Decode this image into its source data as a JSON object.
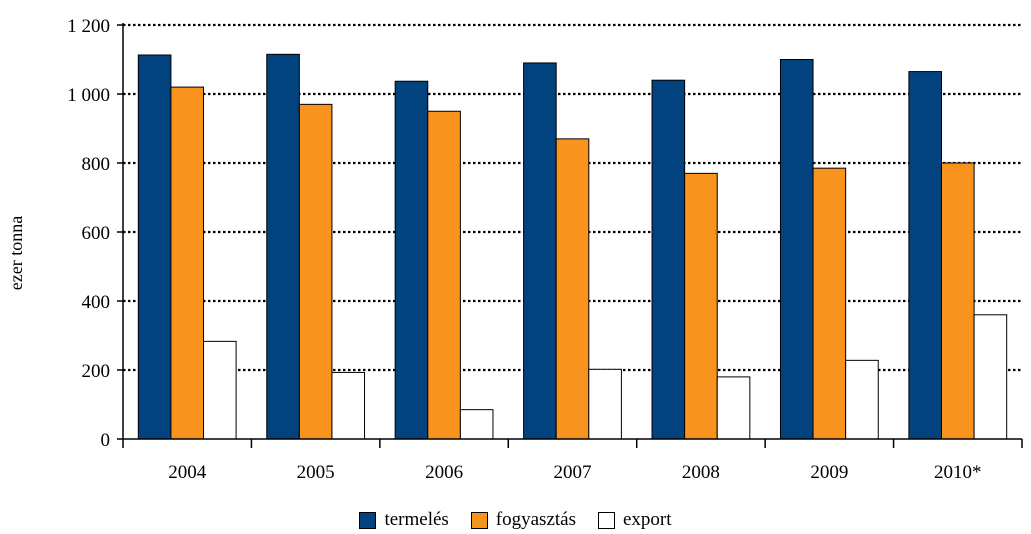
{
  "chart_data": {
    "type": "bar",
    "ylabel": "ezer tonna",
    "categories": [
      "2004",
      "2005",
      "2006",
      "2007",
      "2008",
      "2009",
      "2010*"
    ],
    "ylim": [
      0,
      1200
    ],
    "yticks": [
      0,
      200,
      400,
      600,
      800,
      1000,
      1200
    ],
    "ytick_labels": [
      "0",
      "200",
      "400",
      "600",
      "800",
      "1 000",
      "1 200"
    ],
    "grid": "horizontal dotted",
    "legend_position": "bottom",
    "series": [
      {
        "name": "termelés",
        "color": "#02427F",
        "values": [
          1113,
          1115,
          1037,
          1090,
          1040,
          1100,
          1065
        ]
      },
      {
        "name": "fogyasztás",
        "color": "#F8931D",
        "values": [
          1020,
          970,
          950,
          870,
          770,
          785,
          800
        ]
      },
      {
        "name": "export",
        "color": "#FFFFFF",
        "values": [
          283,
          193,
          85,
          202,
          180,
          228,
          360
        ]
      }
    ]
  }
}
